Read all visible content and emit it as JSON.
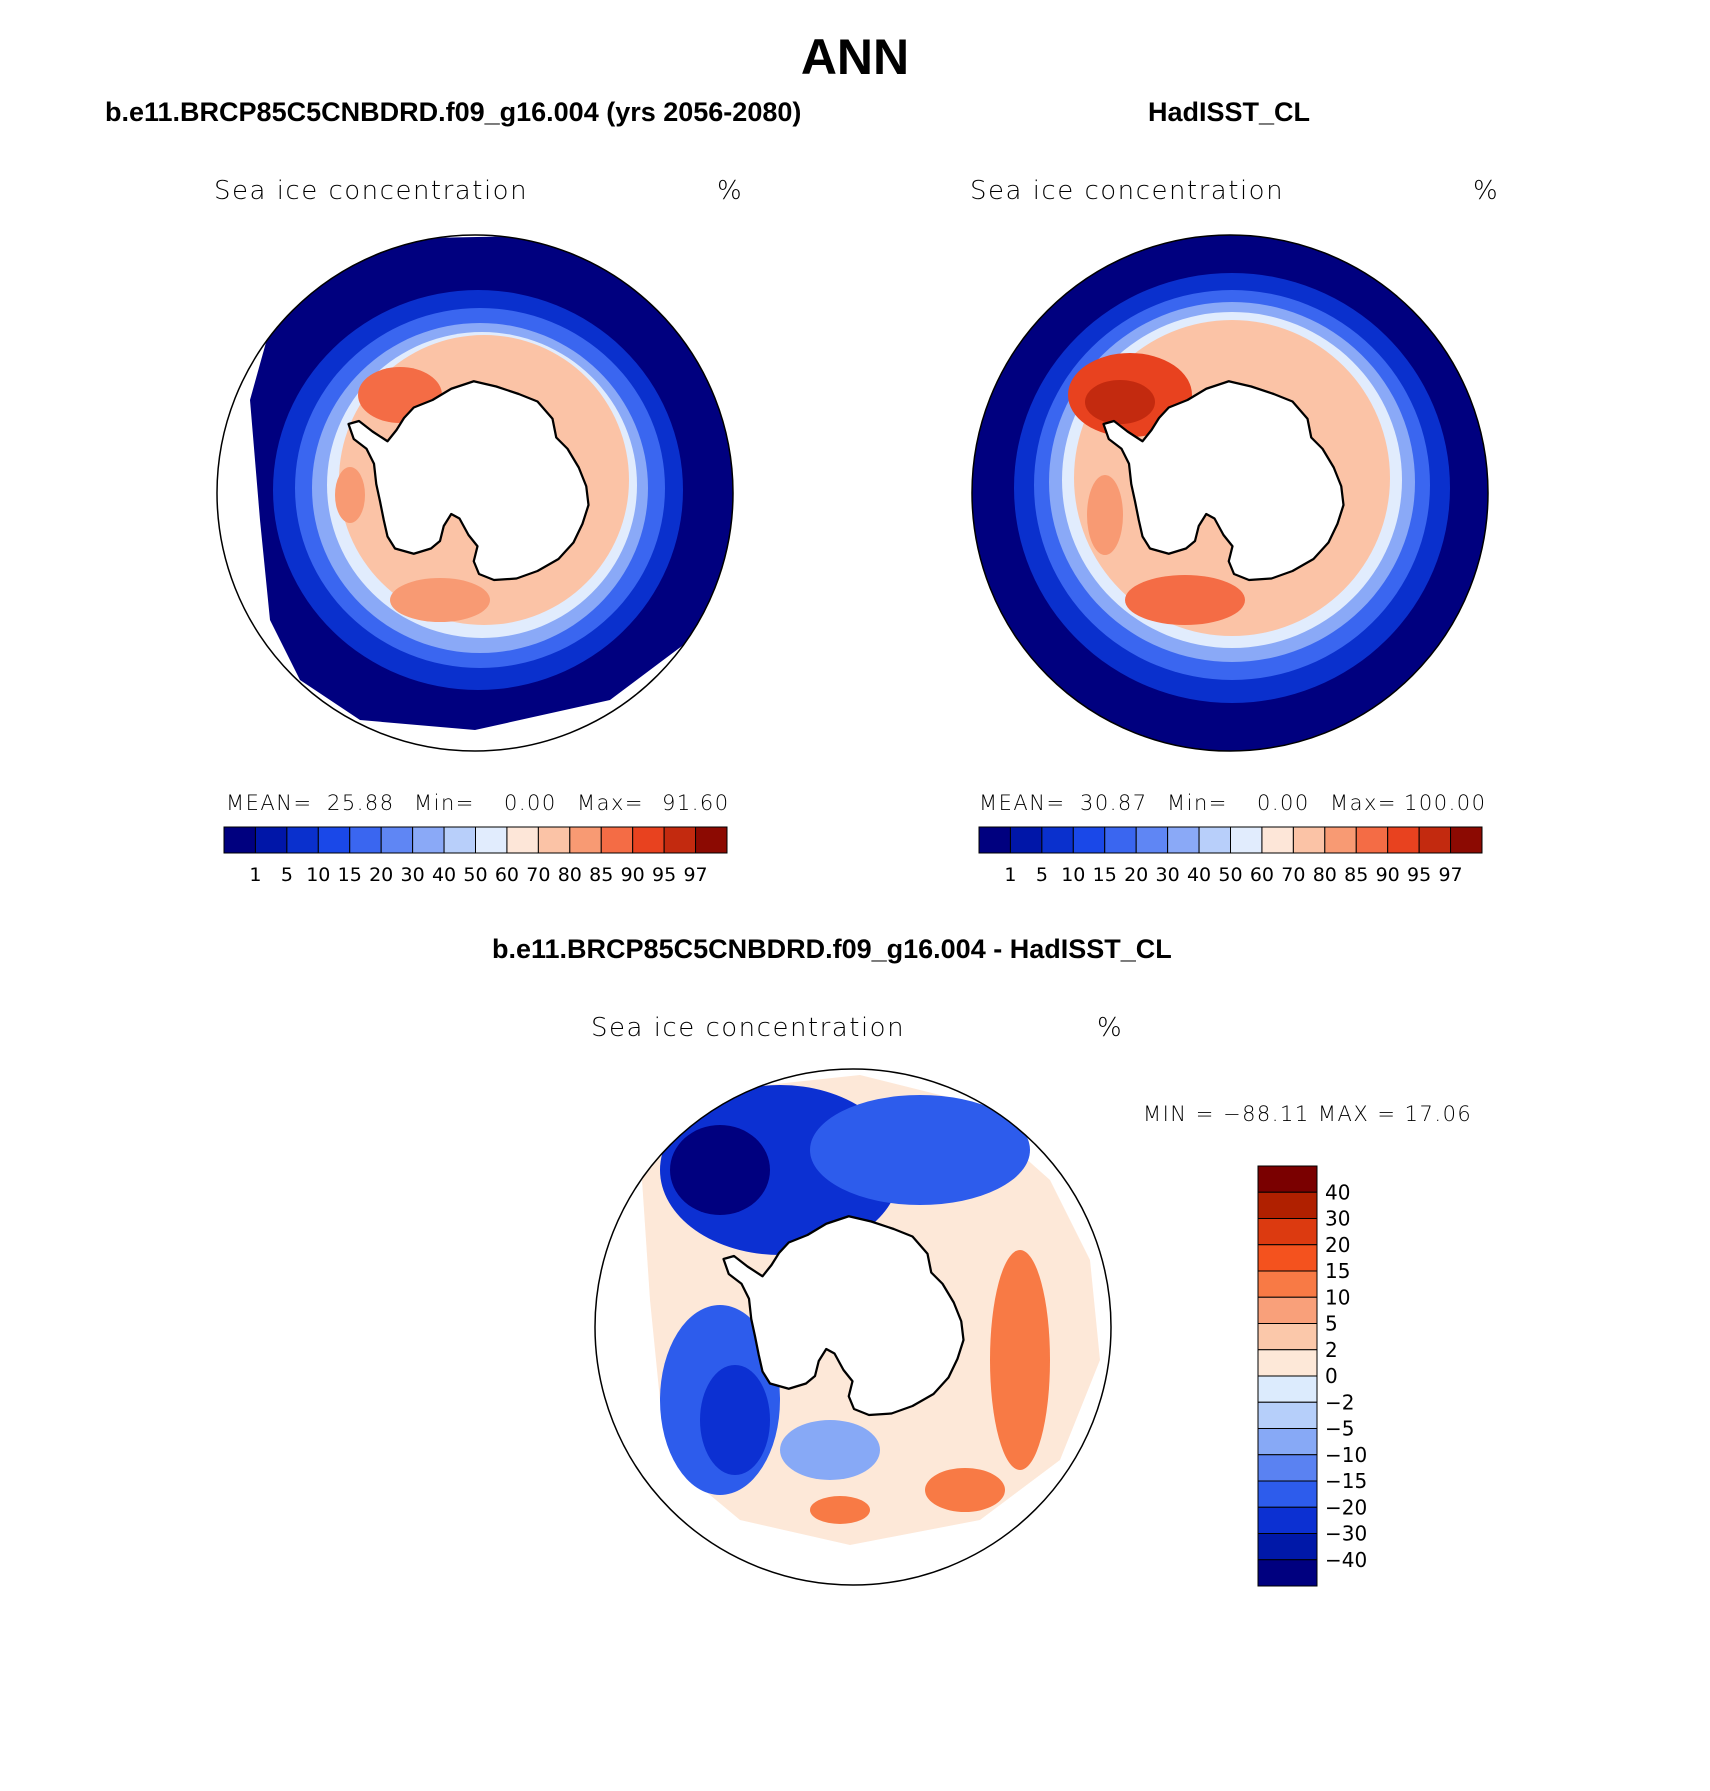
{
  "page": {
    "main_title": "ANN",
    "left_subtitle": "b.e11.BRCP85C5CNBDRD.f09_g16.004 (yrs 2056-2080)",
    "right_subtitle": "HadISST_CL",
    "diff_subtitle": "b.e11.BRCP85C5CNBDRD.f09_g16.004 - HadISST_CL"
  },
  "panels": {
    "model": {
      "title": "Sea ice concentration",
      "unit": "%",
      "mean_label": "MEAN=",
      "mean": "25.88",
      "min_label": "Min=",
      "min": "0.00",
      "max_label": "Max=",
      "max": "91.60"
    },
    "obs": {
      "title": "Sea ice concentration",
      "unit": "%",
      "mean_label": "MEAN=",
      "mean": "30.87",
      "min_label": "Min=",
      "min": "0.00",
      "max_label": "Max=",
      "max": "100.00"
    },
    "diff": {
      "title": "Sea ice concentration",
      "unit": "%",
      "minmax": "MIN = −88.11  MAX =   17.06"
    }
  },
  "colorbars": {
    "abs_levels": [
      "1",
      "5",
      "10",
      "15",
      "20",
      "30",
      "40",
      "50",
      "60",
      "70",
      "80",
      "85",
      "90",
      "95",
      "97"
    ],
    "abs_colors": [
      "#00007f",
      "#0016a8",
      "#0a30cd",
      "#1a48e8",
      "#3a66f0",
      "#5f86f4",
      "#8aa9f7",
      "#b8cffa",
      "#e1ecfd",
      "#fde6d8",
      "#fbc3a6",
      "#f89a73",
      "#f46c45",
      "#e8421f",
      "#c32a0f",
      "#8c0a02"
    ],
    "diff_levels": [
      "40",
      "30",
      "20",
      "15",
      "10",
      "5",
      "2",
      "0",
      "−2",
      "−5",
      "−10",
      "−15",
      "−20",
      "−30",
      "−40"
    ],
    "diff_colors": [
      "#7a0000",
      "#b02000",
      "#dc3a10",
      "#f4521e",
      "#f87a45",
      "#f9a07a",
      "#fbc8aa",
      "#fde8d8",
      "#dcebfd",
      "#b6cffa",
      "#87a9f6",
      "#5a82f2",
      "#2d5cec",
      "#0c30d2",
      "#0018a8",
      "#00007f"
    ]
  }
}
